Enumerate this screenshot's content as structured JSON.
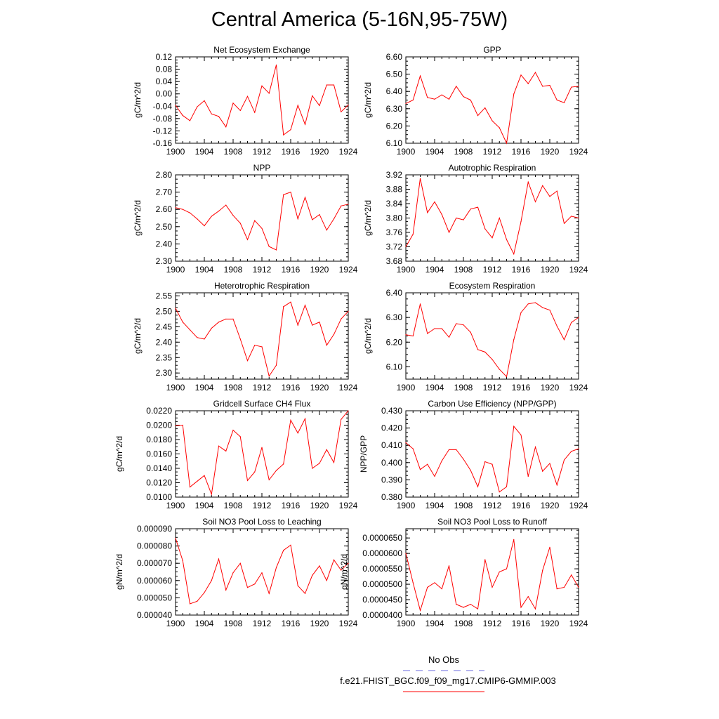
{
  "page": {
    "title": "Central America (5-16N,95-75W)",
    "legend": {
      "obs_label": "No Obs",
      "case_label": "f.e21.FHIST_BGC.f09_f09_mg17.CMIP6-GMMIP.003",
      "obs_color": "#6a6adf",
      "case_color": "#ff0000"
    }
  },
  "chart_data": [
    {
      "type": "line",
      "title": "Net Ecosystem Exchange",
      "ylabel": "gC/m^2/d",
      "xlim": [
        1900,
        1924
      ],
      "ylim": [
        -0.16,
        0.12
      ],
      "yticks": [
        -0.16,
        -0.12,
        -0.08,
        -0.04,
        0.0,
        0.04,
        0.08,
        0.12
      ],
      "ytick_labels": [
        "-0.16",
        "-0.12",
        "-0.08",
        "-0.04",
        "0.00",
        "0.04",
        "0.08",
        "0.12"
      ],
      "xtick_labels": [
        "1900",
        "1904",
        "1908",
        "1912",
        "1916",
        "1920",
        "1924"
      ],
      "x": [
        1900,
        1901,
        1902,
        1903,
        1904,
        1905,
        1906,
        1907,
        1908,
        1909,
        1910,
        1911,
        1912,
        1913,
        1914,
        1915,
        1916,
        1917,
        1918,
        1919,
        1920,
        1921,
        1922,
        1923,
        1924
      ],
      "series": [
        {
          "name": "f.e21.FHIST_BGC.f09_f09_mg17.CMIP6-GMMIP.003",
          "values": [
            -0.037,
            -0.07,
            -0.087,
            -0.042,
            -0.022,
            -0.065,
            -0.073,
            -0.107,
            -0.03,
            -0.054,
            -0.008,
            -0.06,
            0.026,
            0.002,
            0.094,
            -0.133,
            -0.116,
            -0.037,
            -0.099,
            -0.006,
            -0.038,
            0.029,
            0.029,
            -0.058,
            -0.036
          ]
        }
      ]
    },
    {
      "type": "line",
      "title": "GPP",
      "ylabel": "gC/m^2/d",
      "xlim": [
        1900,
        1924
      ],
      "ylim": [
        6.1,
        6.6
      ],
      "yticks": [
        6.1,
        6.2,
        6.3,
        6.4,
        6.5,
        6.6
      ],
      "ytick_labels": [
        "6.10",
        "6.20",
        "6.30",
        "6.40",
        "6.50",
        "6.60"
      ],
      "xtick_labels": [
        "1900",
        "1904",
        "1908",
        "1912",
        "1916",
        "1920",
        "1924"
      ],
      "x": [
        1900,
        1901,
        1902,
        1903,
        1904,
        1905,
        1906,
        1907,
        1908,
        1909,
        1910,
        1911,
        1912,
        1913,
        1914,
        1915,
        1916,
        1917,
        1918,
        1919,
        1920,
        1921,
        1922,
        1923,
        1924
      ],
      "series": [
        {
          "name": "f.e21.FHIST_BGC.f09_f09_mg17.CMIP6-GMMIP.003",
          "values": [
            6.33,
            6.35,
            6.49,
            6.365,
            6.355,
            6.38,
            6.355,
            6.43,
            6.37,
            6.35,
            6.26,
            6.305,
            6.23,
            6.19,
            6.1,
            6.385,
            6.495,
            6.445,
            6.51,
            6.43,
            6.435,
            6.35,
            6.335,
            6.425,
            6.43
          ]
        }
      ]
    },
    {
      "type": "line",
      "title": "NPP",
      "ylabel": "gC/m^2/d",
      "xlim": [
        1900,
        1924
      ],
      "ylim": [
        2.3,
        2.8
      ],
      "yticks": [
        2.3,
        2.4,
        2.5,
        2.6,
        2.7,
        2.8
      ],
      "ytick_labels": [
        "2.30",
        "2.40",
        "2.50",
        "2.60",
        "2.70",
        "2.80"
      ],
      "xtick_labels": [
        "1900",
        "1904",
        "1908",
        "1912",
        "1916",
        "1920",
        "1924"
      ],
      "x": [
        1900,
        1901,
        1902,
        1903,
        1904,
        1905,
        1906,
        1907,
        1908,
        1909,
        1910,
        1911,
        1912,
        1913,
        1914,
        1915,
        1916,
        1917,
        1918,
        1919,
        1920,
        1921,
        1922,
        1923,
        1924
      ],
      "series": [
        {
          "name": "f.e21.FHIST_BGC.f09_f09_mg17.CMIP6-GMMIP.003",
          "values": [
            2.61,
            2.6,
            2.58,
            2.545,
            2.505,
            2.56,
            2.59,
            2.625,
            2.565,
            2.52,
            2.425,
            2.535,
            2.49,
            2.385,
            2.365,
            2.685,
            2.7,
            2.545,
            2.67,
            2.54,
            2.57,
            2.48,
            2.545,
            2.62,
            2.63
          ]
        }
      ]
    },
    {
      "type": "line",
      "title": "Autotrophic Respiration",
      "ylabel": "gC/m^2/d",
      "xlim": [
        1900,
        1924
      ],
      "ylim": [
        3.68,
        3.92
      ],
      "yticks": [
        3.68,
        3.72,
        3.76,
        3.8,
        3.84,
        3.88,
        3.92
      ],
      "ytick_labels": [
        "3.68",
        "3.72",
        "3.76",
        "3.80",
        "3.84",
        "3.88",
        "3.92"
      ],
      "xtick_labels": [
        "1900",
        "1904",
        "1908",
        "1912",
        "1916",
        "1920",
        "1924"
      ],
      "x": [
        1900,
        1901,
        1902,
        1903,
        1904,
        1905,
        1906,
        1907,
        1908,
        1909,
        1910,
        1911,
        1912,
        1913,
        1914,
        1915,
        1916,
        1917,
        1918,
        1919,
        1920,
        1921,
        1922,
        1923,
        1924
      ],
      "series": [
        {
          "name": "f.e21.FHIST_BGC.f09_f09_mg17.CMIP6-GMMIP.003",
          "values": [
            3.72,
            3.755,
            3.91,
            3.815,
            3.845,
            3.81,
            3.76,
            3.8,
            3.795,
            3.825,
            3.83,
            3.77,
            3.745,
            3.8,
            3.74,
            3.7,
            3.79,
            3.9,
            3.845,
            3.89,
            3.86,
            3.875,
            3.785,
            3.805,
            3.8
          ]
        }
      ]
    },
    {
      "type": "line",
      "title": "Heterotrophic Respiration",
      "ylabel": "gC/m^2/d",
      "xlim": [
        1900,
        1924
      ],
      "ylim": [
        2.28,
        2.56
      ],
      "yticks": [
        2.3,
        2.35,
        2.4,
        2.45,
        2.5,
        2.55
      ],
      "ytick_labels": [
        "2.30",
        "2.35",
        "2.40",
        "2.45",
        "2.50",
        "2.55"
      ],
      "xtick_labels": [
        "1900",
        "1904",
        "1908",
        "1912",
        "1916",
        "1920",
        "1924"
      ],
      "x": [
        1900,
        1901,
        1902,
        1903,
        1904,
        1905,
        1906,
        1907,
        1908,
        1909,
        1910,
        1911,
        1912,
        1913,
        1914,
        1915,
        1916,
        1917,
        1918,
        1919,
        1920,
        1921,
        1922,
        1923,
        1924
      ],
      "series": [
        {
          "name": "f.e21.FHIST_BGC.f09_f09_mg17.CMIP6-GMMIP.003",
          "values": [
            2.51,
            2.465,
            2.44,
            2.415,
            2.41,
            2.445,
            2.465,
            2.475,
            2.475,
            2.41,
            2.34,
            2.39,
            2.385,
            2.29,
            2.325,
            2.515,
            2.53,
            2.455,
            2.52,
            2.455,
            2.465,
            2.39,
            2.425,
            2.475,
            2.5
          ]
        }
      ]
    },
    {
      "type": "line",
      "title": "Ecosystem Respiration",
      "ylabel": "gC/m^2/d",
      "xlim": [
        1900,
        1924
      ],
      "ylim": [
        6.05,
        6.4
      ],
      "yticks": [
        6.1,
        6.2,
        6.3,
        6.4
      ],
      "ytick_labels": [
        "6.10",
        "6.20",
        "6.30",
        "6.40"
      ],
      "xtick_labels": [
        "1900",
        "1904",
        "1908",
        "1912",
        "1916",
        "1920",
        "1924"
      ],
      "x": [
        1900,
        1901,
        1902,
        1903,
        1904,
        1905,
        1906,
        1907,
        1908,
        1909,
        1910,
        1911,
        1912,
        1913,
        1914,
        1915,
        1916,
        1917,
        1918,
        1919,
        1920,
        1921,
        1922,
        1923,
        1924
      ],
      "series": [
        {
          "name": "f.e21.FHIST_BGC.f09_f09_mg17.CMIP6-GMMIP.003",
          "values": [
            6.23,
            6.225,
            6.355,
            6.235,
            6.255,
            6.255,
            6.22,
            6.275,
            6.27,
            6.24,
            6.17,
            6.16,
            6.13,
            6.09,
            6.06,
            6.21,
            6.32,
            6.355,
            6.36,
            6.34,
            6.33,
            6.265,
            6.21,
            6.28,
            6.3
          ]
        }
      ]
    },
    {
      "type": "line",
      "title": "Gridcell Surface CH4 Flux",
      "ylabel": "gC/m^2/d",
      "xlim": [
        1900,
        1924
      ],
      "ylim": [
        0.01,
        0.022
      ],
      "yticks": [
        0.01,
        0.012,
        0.014,
        0.016,
        0.018,
        0.02,
        0.022
      ],
      "ytick_labels": [
        "0.0100",
        "0.0120",
        "0.0140",
        "0.0160",
        "0.0180",
        "0.0200",
        "0.0220"
      ],
      "xtick_labels": [
        "1900",
        "1904",
        "1908",
        "1912",
        "1916",
        "1920",
        "1924"
      ],
      "x": [
        1900,
        1901,
        1902,
        1903,
        1904,
        1905,
        1906,
        1907,
        1908,
        1909,
        1910,
        1911,
        1912,
        1913,
        1914,
        1915,
        1916,
        1917,
        1918,
        1919,
        1920,
        1921,
        1922,
        1923,
        1924
      ],
      "series": [
        {
          "name": "f.e21.FHIST_BGC.f09_f09_mg17.CMIP6-GMMIP.003",
          "values": [
            0.0199,
            0.02,
            0.0114,
            0.0122,
            0.013,
            0.0104,
            0.0171,
            0.0164,
            0.0193,
            0.0184,
            0.0123,
            0.0135,
            0.0169,
            0.0124,
            0.0137,
            0.0146,
            0.0207,
            0.0189,
            0.0209,
            0.014,
            0.0147,
            0.0166,
            0.0148,
            0.0208,
            0.022
          ]
        }
      ]
    },
    {
      "type": "line",
      "title": "Carbon Use Efficiency (NPP/GPP)",
      "ylabel": "NPP/GPP",
      "xlim": [
        1900,
        1924
      ],
      "ylim": [
        0.38,
        0.43
      ],
      "yticks": [
        0.38,
        0.39,
        0.4,
        0.41,
        0.42,
        0.43
      ],
      "ytick_labels": [
        "0.380",
        "0.390",
        "0.400",
        "0.410",
        "0.420",
        "0.430"
      ],
      "xtick_labels": [
        "1900",
        "1904",
        "1908",
        "1912",
        "1916",
        "1920",
        "1924"
      ],
      "x": [
        1900,
        1901,
        1902,
        1903,
        1904,
        1905,
        1906,
        1907,
        1908,
        1909,
        1910,
        1911,
        1912,
        1913,
        1914,
        1915,
        1916,
        1917,
        1918,
        1919,
        1920,
        1921,
        1922,
        1923,
        1924
      ],
      "series": [
        {
          "name": "f.e21.FHIST_BGC.f09_f09_mg17.CMIP6-GMMIP.003",
          "values": [
            0.4115,
            0.408,
            0.396,
            0.399,
            0.392,
            0.401,
            0.4075,
            0.4075,
            0.402,
            0.3955,
            0.386,
            0.4005,
            0.399,
            0.383,
            0.386,
            0.421,
            0.416,
            0.392,
            0.409,
            0.395,
            0.3995,
            0.387,
            0.4015,
            0.4065,
            0.408
          ]
        }
      ]
    },
    {
      "type": "line",
      "title": "Soil NO3 Pool Loss to Leaching",
      "ylabel": "gN/m^2/d",
      "xlim": [
        1900,
        1924
      ],
      "ylim": [
        4e-05,
        9e-05
      ],
      "yticks": [
        4e-05,
        5e-05,
        6e-05,
        7e-05,
        8e-05,
        9e-05
      ],
      "ytick_labels": [
        "0.000040",
        "0.000050",
        "0.000060",
        "0.000070",
        "0.000080",
        "0.000090"
      ],
      "xtick_labels": [
        "1900",
        "1904",
        "1908",
        "1912",
        "1916",
        "1920",
        "1924"
      ],
      "x": [
        1900,
        1901,
        1902,
        1903,
        1904,
        1905,
        1906,
        1907,
        1908,
        1909,
        1910,
        1911,
        1912,
        1913,
        1914,
        1915,
        1916,
        1917,
        1918,
        1919,
        1920,
        1921,
        1922,
        1923,
        1924
      ],
      "series": [
        {
          "name": "f.e21.FHIST_BGC.f09_f09_mg17.CMIP6-GMMIP.003",
          "values": [
            8.45e-05,
            7.15e-05,
            4.65e-05,
            4.8e-05,
            5.3e-05,
            6e-05,
            7.25e-05,
            5.45e-05,
            6.45e-05,
            7e-05,
            5.6e-05,
            5.8e-05,
            6.45e-05,
            5.25e-05,
            6.75e-05,
            7.75e-05,
            8.05e-05,
            5.7e-05,
            5.25e-05,
            6.3e-05,
            6.85e-05,
            6e-05,
            7.2e-05,
            6.6e-05,
            7e-05
          ]
        }
      ]
    },
    {
      "type": "line",
      "title": "Soil NO3 Pool Loss to Runoff",
      "ylabel": "gN/m^2/d",
      "xlim": [
        1900,
        1924
      ],
      "ylim": [
        4e-05,
        6.8e-05
      ],
      "yticks": [
        4e-05,
        4.5e-05,
        5e-05,
        5.5e-05,
        6e-05,
        6.5e-05
      ],
      "ytick_labels": [
        "0.0000400",
        "0.0000450",
        "0.0000500",
        "0.0000550",
        "0.0000600",
        "0.0000650"
      ],
      "xtick_labels": [
        "1900",
        "1904",
        "1908",
        "1912",
        "1916",
        "1920",
        "1924"
      ],
      "x": [
        1900,
        1901,
        1902,
        1903,
        1904,
        1905,
        1906,
        1907,
        1908,
        1909,
        1910,
        1911,
        1912,
        1913,
        1914,
        1915,
        1916,
        1917,
        1918,
        1919,
        1920,
        1921,
        1922,
        1923,
        1924
      ],
      "series": [
        {
          "name": "f.e21.FHIST_BGC.f09_f09_mg17.CMIP6-GMMIP.003",
          "values": [
            6e-05,
            5.05e-05,
            4.15e-05,
            4.9e-05,
            5.05e-05,
            4.85e-05,
            5.6e-05,
            4.35e-05,
            4.25e-05,
            4.35e-05,
            4.2e-05,
            5.8e-05,
            4.9e-05,
            5.4e-05,
            5.5e-05,
            6.45e-05,
            4.25e-05,
            4.6e-05,
            4.2e-05,
            5.45e-05,
            6.2e-05,
            4.85e-05,
            4.9e-05,
            5.3e-05,
            4.9e-05
          ]
        }
      ]
    }
  ]
}
